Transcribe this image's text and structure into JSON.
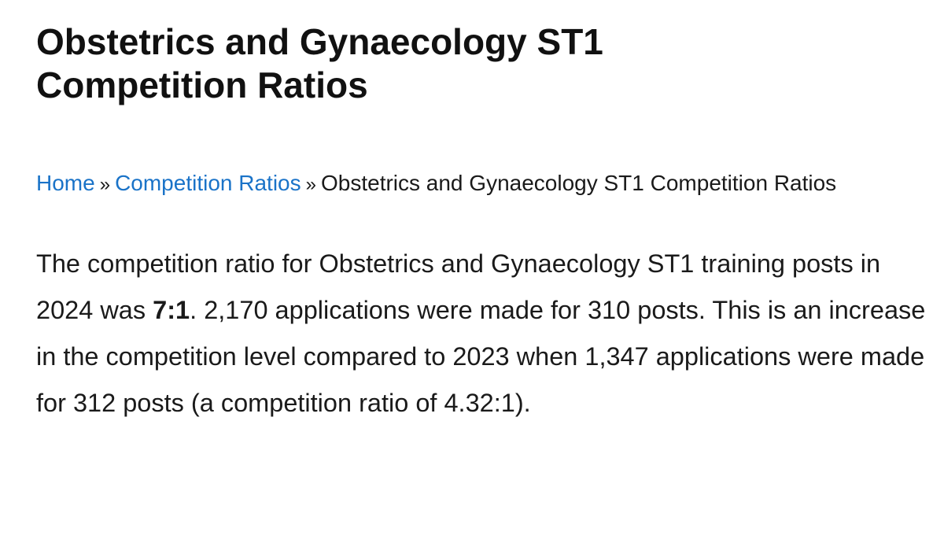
{
  "title": "Obstetrics and Gynaecology ST1 Competition Ratios",
  "breadcrumb": {
    "items": [
      "Home",
      "Competition Ratios",
      "Obstetrics and Gynaecology ST1 Competition Ratios"
    ],
    "separator": "»"
  },
  "paragraph": {
    "before": "The competition ratio for Obstetrics and Gynaecology ST1 training posts in 2024 was ",
    "bold": "7:1",
    "after": ". 2,170 applications were made for 310 posts. This is an increase in the competition level compared to 2023 when 1,347 applications were made for 312 posts (a competition ratio of 4.32:1)."
  }
}
